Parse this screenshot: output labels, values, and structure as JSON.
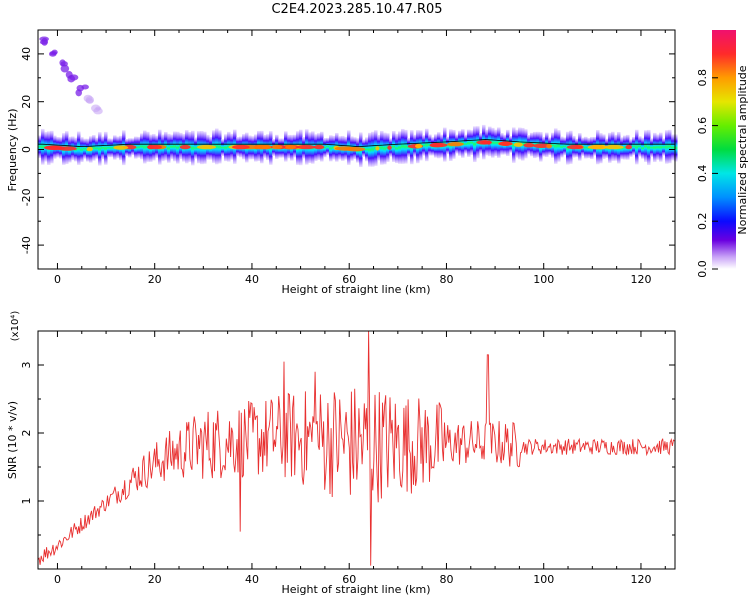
{
  "title": "C2E4.2023.285.10.47.R05",
  "colors": {
    "snr_line": "#e83030",
    "axis": "#000000",
    "ridge_line": "#000000"
  },
  "chart_data": [
    {
      "type": "heatmap",
      "xlabel": "Height of straight line (km)",
      "ylabel": "Frequency (Hz)",
      "xlim": [
        -4,
        127
      ],
      "ylim": [
        -50,
        50
      ],
      "xticks": [
        "0",
        "20",
        "40",
        "60",
        "80",
        "100",
        "120"
      ],
      "yticks": [
        "-40",
        "-20",
        "0",
        "20",
        "40"
      ],
      "colorbar": {
        "label": "Normalized spectral amplitude",
        "range": [
          0,
          1
        ],
        "ticks": [
          "0.0",
          "0.2",
          "0.4",
          "0.6",
          "0.8"
        ]
      },
      "ridge": {
        "description_values": "dominant frequency near 0 Hz along height",
        "x": [
          -3,
          5,
          15,
          25,
          35,
          45,
          55,
          62,
          70,
          80,
          88,
          95,
          105,
          115,
          127
        ],
        "freq": [
          1,
          0,
          1,
          1,
          1,
          1,
          1,
          0,
          1,
          2,
          3,
          2,
          1,
          1,
          1
        ]
      },
      "drifting_feature": {
        "x": [
          -3,
          -1,
          1,
          3,
          5,
          7,
          8
        ],
        "freq": [
          45,
          40,
          35,
          30,
          25,
          20,
          16
        ]
      },
      "grid": false
    },
    {
      "type": "line",
      "xlabel": "Height of straight line (km)",
      "ylabel": "SNR (10 * v/v)",
      "yscale_label": "(x10⁴)",
      "xlim": [
        -4,
        127
      ],
      "ylim": [
        0,
        3.5
      ],
      "xticks": [
        "0",
        "20",
        "40",
        "60",
        "80",
        "100",
        "120"
      ],
      "yticks": [
        "1",
        "2",
        "3"
      ],
      "series": [
        {
          "x": [
            -4,
            0,
            4,
            8,
            12,
            16,
            20,
            24,
            28,
            32,
            36,
            40,
            44,
            48,
            52,
            56,
            60,
            64,
            68,
            72,
            76,
            80,
            84,
            88,
            92,
            96,
            100,
            104,
            108,
            112,
            116,
            120,
            124,
            127
          ],
          "values": [
            0.15,
            0.35,
            0.6,
            0.85,
            1.1,
            1.35,
            1.55,
            1.7,
            1.8,
            1.85,
            1.9,
            1.9,
            1.95,
            1.95,
            1.9,
            1.9,
            1.85,
            1.85,
            1.85,
            1.85,
            1.85,
            1.85,
            1.85,
            1.85,
            1.85,
            1.8,
            1.8,
            1.8,
            1.8,
            1.8,
            1.8,
            1.8,
            1.8,
            1.8
          ],
          "spikes": [
            [
              46.5,
              3.05
            ],
            [
              53,
              2.9
            ],
            [
              64,
              3.5
            ],
            [
              64.5,
              0.05
            ],
            [
              88.5,
              3.15
            ],
            [
              37.5,
              0.55
            ]
          ]
        }
      ],
      "grid": false
    }
  ]
}
